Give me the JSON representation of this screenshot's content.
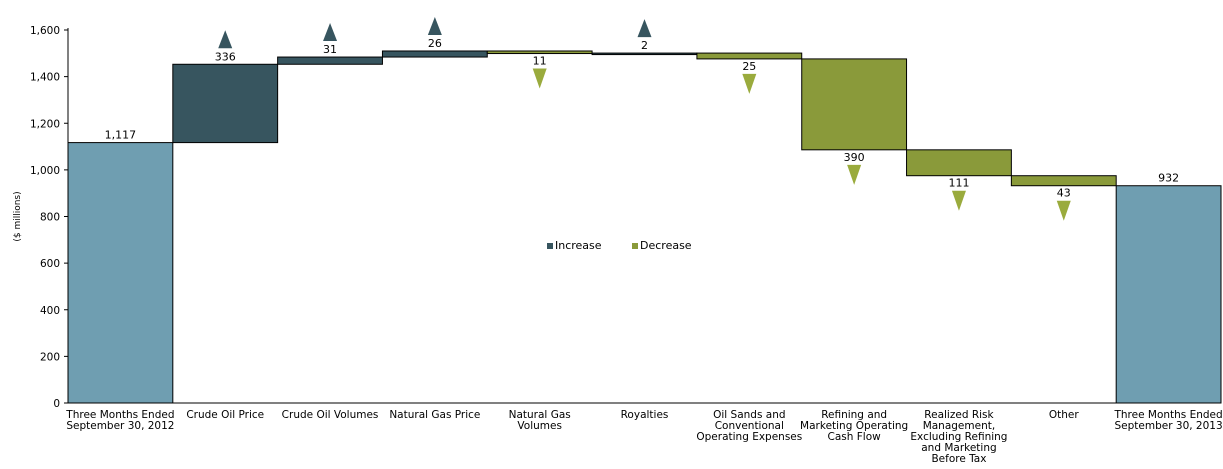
{
  "chart_data": {
    "type": "bar",
    "subtype": "waterfall",
    "ylabel": "($ millions)",
    "ylim": [
      0,
      1600
    ],
    "yticks": [
      "0",
      "200",
      "400",
      "600",
      "800",
      "1,000",
      "1,200",
      "1,400",
      "1,600"
    ],
    "ytick_values": [
      0,
      200,
      400,
      600,
      800,
      1000,
      1200,
      1400,
      1600
    ],
    "grid": false,
    "legend": {
      "placement": "center",
      "entries": [
        {
          "name": "Increase",
          "color": "#37555f"
        },
        {
          "name": "Decrease",
          "color": "#8a9a3a"
        }
      ]
    },
    "colors": {
      "total": "#6f9eb1",
      "increase": "#37555f",
      "decrease": "#8a9a3a",
      "increase_arrow": "#37555f",
      "decrease_arrow": "#9aab3d"
    },
    "categories": [
      [
        "Three Months Ended",
        "September 30, 2012"
      ],
      [
        "Crude Oil Price"
      ],
      [
        "Crude Oil Volumes"
      ],
      [
        "Natural Gas Price"
      ],
      [
        "Natural Gas",
        "Volumes"
      ],
      [
        "Royalties"
      ],
      [
        "Oil Sands and",
        "Conventional",
        "Operating Expenses"
      ],
      [
        "Refining and",
        "Marketing Operating",
        "Cash Flow"
      ],
      [
        "Realized Risk",
        "Management,",
        "Excluding Refining",
        "and Marketing",
        "Before Tax"
      ],
      [
        "Other"
      ],
      [
        "Three Months Ended",
        "September 30, 2013"
      ]
    ],
    "bars": [
      {
        "kind": "total",
        "value": 1117,
        "label": "1,117"
      },
      {
        "kind": "increase",
        "value": 336,
        "label": "336"
      },
      {
        "kind": "increase",
        "value": 31,
        "label": "31"
      },
      {
        "kind": "increase",
        "value": 26,
        "label": "26"
      },
      {
        "kind": "decrease",
        "value": 11,
        "label": "11"
      },
      {
        "kind": "increase",
        "value": 2,
        "label": "2"
      },
      {
        "kind": "decrease",
        "value": 25,
        "label": "25"
      },
      {
        "kind": "decrease",
        "value": 390,
        "label": "390"
      },
      {
        "kind": "decrease",
        "value": 111,
        "label": "111"
      },
      {
        "kind": "decrease",
        "value": 43,
        "label": "43"
      },
      {
        "kind": "total",
        "value": 932,
        "label": "932"
      }
    ]
  }
}
